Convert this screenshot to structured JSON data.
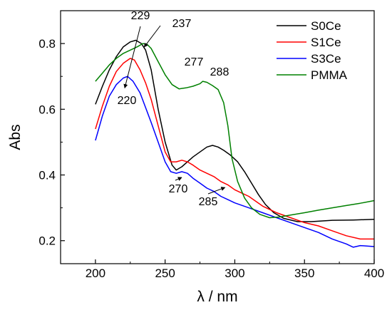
{
  "chart_data": {
    "type": "line",
    "xlabel": "λ / nm",
    "ylabel": "Abs",
    "xlim": [
      175,
      400
    ],
    "ylim": [
      0.13,
      0.9
    ],
    "xticks": [
      200,
      250,
      300,
      350,
      400
    ],
    "yticks": [
      0.2,
      0.4,
      0.6,
      0.8
    ],
    "xtick_labels": [
      "200",
      "250",
      "300",
      "350",
      "400"
    ],
    "ytick_labels": [
      "0.2",
      "0.4",
      "0.6",
      "0.8"
    ],
    "grid": false,
    "legend_position": "top-right",
    "series": [
      {
        "name": "S0Ce",
        "color": "#000000",
        "points": [
          [
            200,
            0.615
          ],
          [
            205,
            0.67
          ],
          [
            210,
            0.72
          ],
          [
            215,
            0.76
          ],
          [
            220,
            0.79
          ],
          [
            225,
            0.805
          ],
          [
            229,
            0.81
          ],
          [
            233,
            0.8
          ],
          [
            236,
            0.78
          ],
          [
            240,
            0.72
          ],
          [
            245,
            0.6
          ],
          [
            250,
            0.5
          ],
          [
            255,
            0.43
          ],
          [
            258,
            0.415
          ],
          [
            262,
            0.425
          ],
          [
            266,
            0.44
          ],
          [
            270,
            0.455
          ],
          [
            275,
            0.47
          ],
          [
            280,
            0.485
          ],
          [
            284,
            0.49
          ],
          [
            288,
            0.485
          ],
          [
            292,
            0.475
          ],
          [
            297,
            0.46
          ],
          [
            302,
            0.44
          ],
          [
            307,
            0.41
          ],
          [
            312,
            0.375
          ],
          [
            317,
            0.34
          ],
          [
            322,
            0.31
          ],
          [
            328,
            0.285
          ],
          [
            335,
            0.268
          ],
          [
            345,
            0.258
          ],
          [
            355,
            0.258
          ],
          [
            370,
            0.262
          ],
          [
            385,
            0.263
          ],
          [
            400,
            0.265
          ]
        ]
      },
      {
        "name": "S1Ce",
        "color": "#ff0000",
        "points": [
          [
            200,
            0.54
          ],
          [
            205,
            0.61
          ],
          [
            210,
            0.67
          ],
          [
            215,
            0.715
          ],
          [
            220,
            0.74
          ],
          [
            225,
            0.755
          ],
          [
            228,
            0.75
          ],
          [
            232,
            0.72
          ],
          [
            236,
            0.68
          ],
          [
            240,
            0.63
          ],
          [
            245,
            0.55
          ],
          [
            250,
            0.47
          ],
          [
            254,
            0.44
          ],
          [
            258,
            0.44
          ],
          [
            262,
            0.445
          ],
          [
            266,
            0.44
          ],
          [
            270,
            0.43
          ],
          [
            275,
            0.415
          ],
          [
            280,
            0.405
          ],
          [
            285,
            0.395
          ],
          [
            290,
            0.38
          ],
          [
            295,
            0.37
          ],
          [
            300,
            0.355
          ],
          [
            305,
            0.345
          ],
          [
            310,
            0.335
          ],
          [
            320,
            0.305
          ],
          [
            330,
            0.285
          ],
          [
            340,
            0.27
          ],
          [
            350,
            0.255
          ],
          [
            360,
            0.245
          ],
          [
            370,
            0.23
          ],
          [
            380,
            0.215
          ],
          [
            390,
            0.205
          ],
          [
            400,
            0.205
          ]
        ]
      },
      {
        "name": "S3Ce",
        "color": "#0000ff",
        "points": [
          [
            200,
            0.505
          ],
          [
            205,
            0.58
          ],
          [
            210,
            0.64
          ],
          [
            215,
            0.675
          ],
          [
            220,
            0.695
          ],
          [
            223,
            0.7
          ],
          [
            227,
            0.685
          ],
          [
            232,
            0.65
          ],
          [
            236,
            0.605
          ],
          [
            240,
            0.56
          ],
          [
            245,
            0.5
          ],
          [
            250,
            0.44
          ],
          [
            254,
            0.41
          ],
          [
            258,
            0.405
          ],
          [
            262,
            0.41
          ],
          [
            266,
            0.405
          ],
          [
            270,
            0.39
          ],
          [
            275,
            0.375
          ],
          [
            280,
            0.36
          ],
          [
            285,
            0.35
          ],
          [
            290,
            0.335
          ],
          [
            295,
            0.325
          ],
          [
            300,
            0.315
          ],
          [
            310,
            0.3
          ],
          [
            320,
            0.285
          ],
          [
            330,
            0.27
          ],
          [
            340,
            0.255
          ],
          [
            350,
            0.24
          ],
          [
            360,
            0.225
          ],
          [
            370,
            0.205
          ],
          [
            380,
            0.19
          ],
          [
            385,
            0.18
          ],
          [
            390,
            0.185
          ],
          [
            400,
            0.182
          ]
        ]
      },
      {
        "name": "PMMA",
        "color": "#008000",
        "points": [
          [
            200,
            0.685
          ],
          [
            205,
            0.71
          ],
          [
            210,
            0.735
          ],
          [
            215,
            0.755
          ],
          [
            220,
            0.77
          ],
          [
            225,
            0.78
          ],
          [
            230,
            0.79
          ],
          [
            234,
            0.8
          ],
          [
            237,
            0.798
          ],
          [
            240,
            0.785
          ],
          [
            245,
            0.745
          ],
          [
            250,
            0.705
          ],
          [
            255,
            0.675
          ],
          [
            260,
            0.662
          ],
          [
            265,
            0.665
          ],
          [
            270,
            0.67
          ],
          [
            275,
            0.678
          ],
          [
            277,
            0.685
          ],
          [
            280,
            0.682
          ],
          [
            284,
            0.672
          ],
          [
            288,
            0.66
          ],
          [
            292,
            0.62
          ],
          [
            295,
            0.55
          ],
          [
            298,
            0.45
          ],
          [
            302,
            0.38
          ],
          [
            307,
            0.33
          ],
          [
            312,
            0.3
          ],
          [
            318,
            0.28
          ],
          [
            325,
            0.27
          ],
          [
            332,
            0.272
          ],
          [
            340,
            0.278
          ],
          [
            350,
            0.285
          ],
          [
            360,
            0.293
          ],
          [
            370,
            0.3
          ],
          [
            380,
            0.307
          ],
          [
            390,
            0.314
          ],
          [
            400,
            0.322
          ]
        ]
      }
    ],
    "annotations": [
      {
        "text": "229",
        "x": 229,
        "y": 0.81
      },
      {
        "text": "237",
        "x": 237,
        "y": 0.798
      },
      {
        "text": "220",
        "x": 220,
        "y": 0.695
      },
      {
        "text": "277",
        "x": 277,
        "y": 0.685
      },
      {
        "text": "288",
        "x": 288,
        "y": 0.66
      },
      {
        "text": "270",
        "x": 270,
        "y": 0.41
      },
      {
        "text": "285",
        "x": 285,
        "y": 0.395
      }
    ]
  }
}
